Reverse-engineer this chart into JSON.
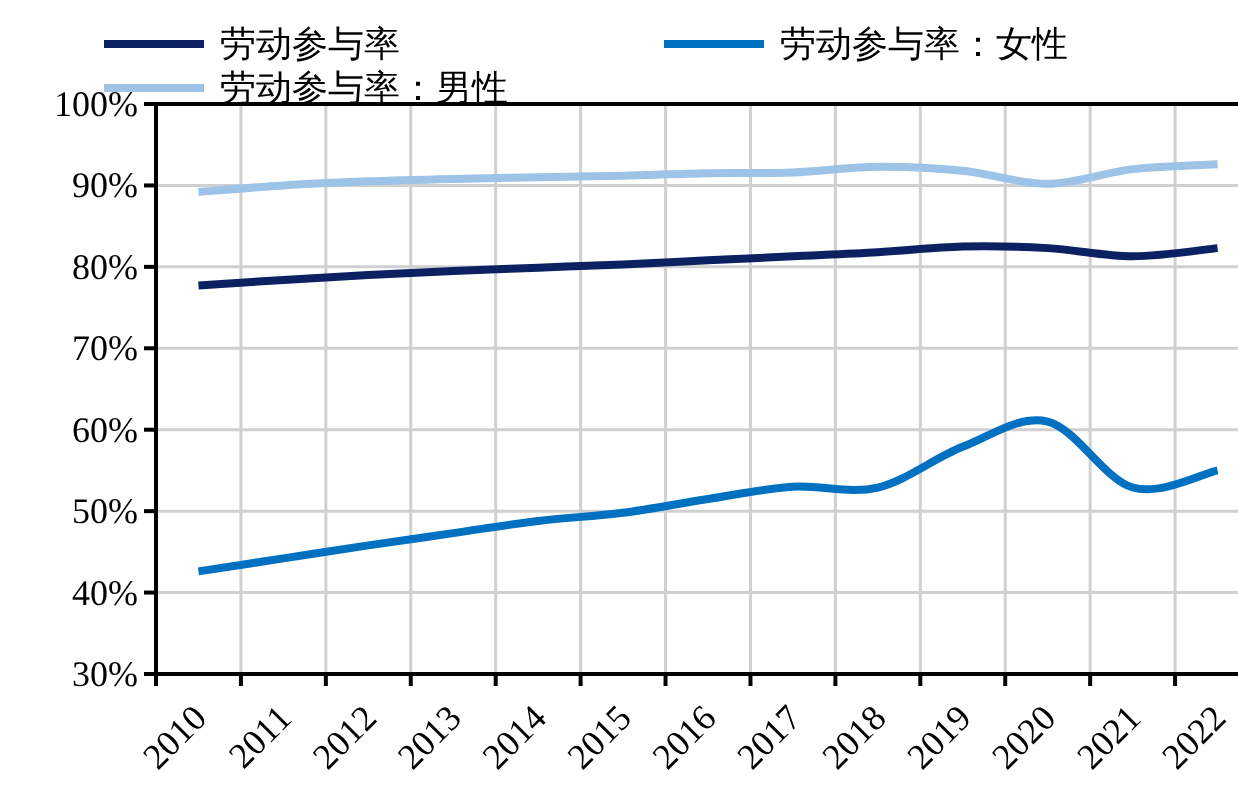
{
  "chart_data": {
    "type": "line",
    "categories": [
      "2010",
      "2011",
      "2012",
      "2013",
      "2014",
      "2015",
      "2016",
      "2017",
      "2018",
      "2019",
      "2020",
      "2021",
      "2022"
    ],
    "series": [
      {
        "name": "劳动参与率",
        "color": "#0b2161",
        "values": [
          77.7,
          78.4,
          79.0,
          79.5,
          79.9,
          80.3,
          80.8,
          81.3,
          81.8,
          82.5,
          82.3,
          81.3,
          82.3
        ]
      },
      {
        "name": "劳动参与率：男性",
        "color": "#9dc3e6",
        "values": [
          89.2,
          90.0,
          90.5,
          90.8,
          91.0,
          91.2,
          91.5,
          91.6,
          92.3,
          91.8,
          90.2,
          92.0,
          92.6
        ]
      },
      {
        "name": "劳动参与率：女性",
        "color": "#0070c0",
        "values": [
          42.6,
          44.2,
          45.8,
          47.3,
          48.8,
          49.8,
          51.5,
          53.0,
          52.9,
          57.9,
          61.0,
          52.9,
          55.0
        ]
      }
    ],
    "ylim": [
      30,
      100
    ],
    "yticks": [
      {
        "value": 30,
        "label": "30%"
      },
      {
        "value": 40,
        "label": "40%"
      },
      {
        "value": 50,
        "label": "50%"
      },
      {
        "value": 60,
        "label": "60%"
      },
      {
        "value": 70,
        "label": "70%"
      },
      {
        "value": 80,
        "label": "80%"
      },
      {
        "value": 90,
        "label": "90%"
      },
      {
        "value": 100,
        "label": "100%"
      }
    ],
    "grid": true,
    "legend": "top",
    "marker": "none",
    "line_style": "solid"
  }
}
